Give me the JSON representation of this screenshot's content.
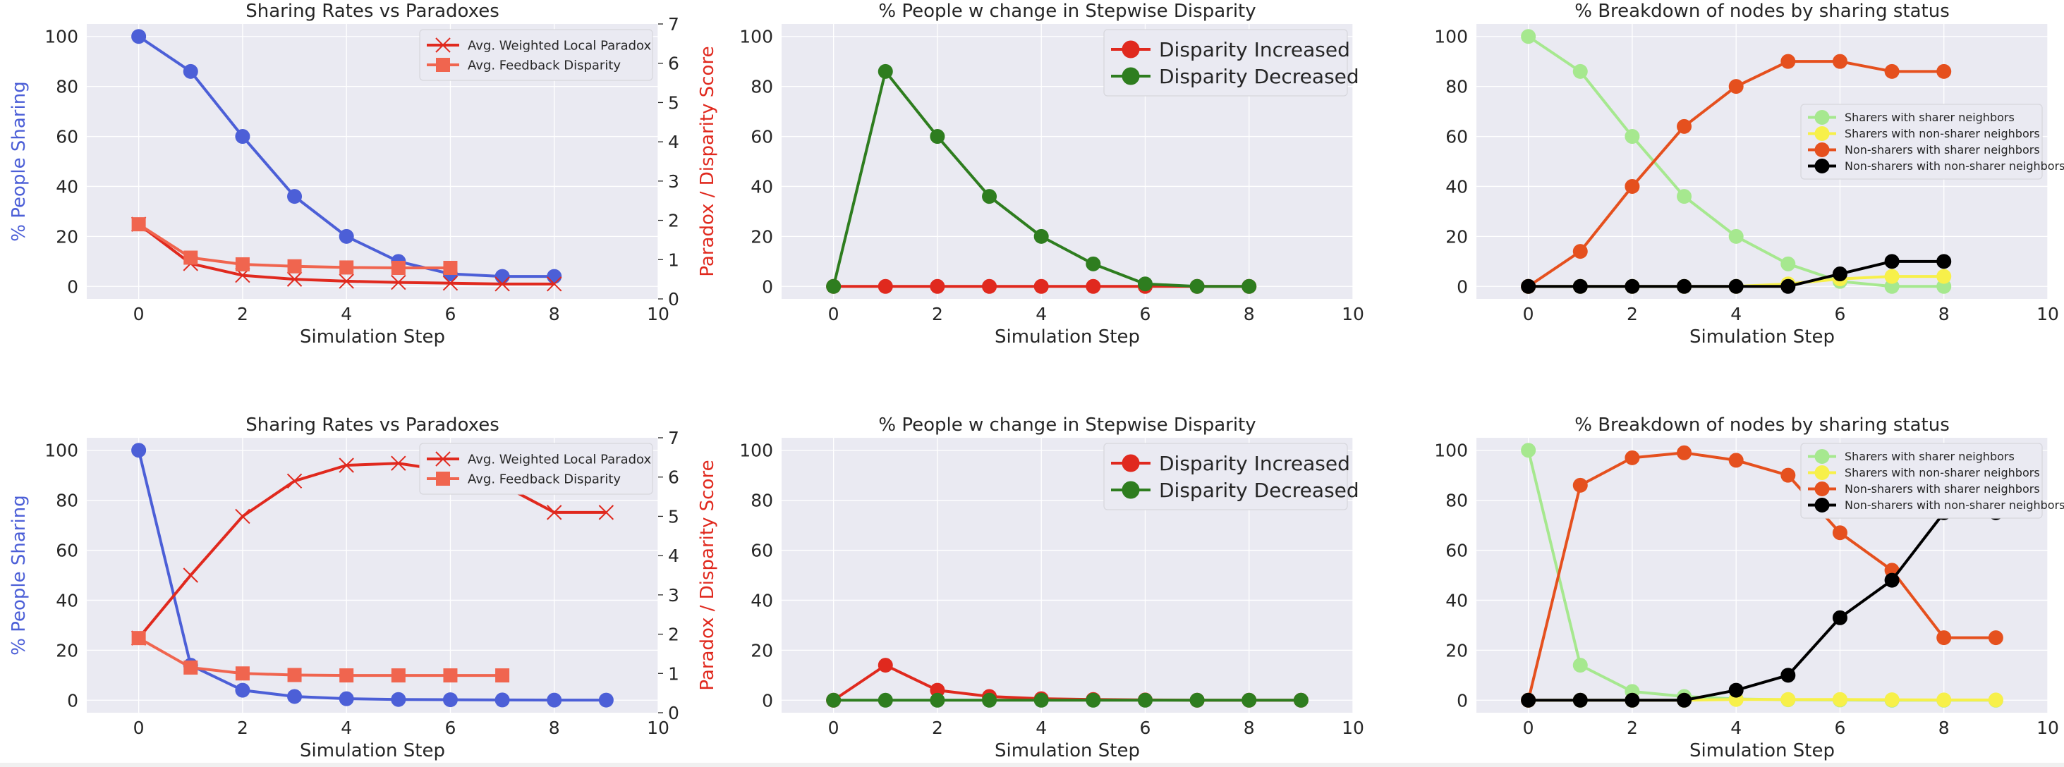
{
  "chart_data": [
    {
      "type": "line",
      "title": "Sharing Rates vs Paradoxes",
      "xlabel": "Simulation Step",
      "ylabel": "% People Sharing",
      "y2label": "Paradox / Disparity Score",
      "xlim": [
        -1,
        10
      ],
      "ylim": [
        -5,
        105
      ],
      "y2lim": [
        0,
        7
      ],
      "xticks": [
        0,
        2,
        4,
        6,
        8,
        10
      ],
      "yticks": [
        0,
        20,
        40,
        60,
        80,
        100
      ],
      "y2ticks": [
        0,
        1,
        2,
        3,
        4,
        5,
        6,
        7
      ],
      "legend_position": "upper right",
      "legend_size": "small",
      "series": [
        {
          "name": "% People Sharing",
          "axis": "left",
          "color": "#4c5fd7",
          "marker": "o",
          "x": [
            0,
            1,
            2,
            3,
            4,
            5,
            6,
            7,
            8
          ],
          "values": [
            100,
            86,
            60,
            36,
            20,
            10,
            5,
            4,
            4
          ],
          "legend": false
        },
        {
          "name": "Avg. Weighted Local Paradox",
          "axis": "right",
          "color": "#e0291e",
          "marker": "x",
          "x": [
            0,
            1,
            2,
            3,
            4,
            5,
            6,
            7,
            8
          ],
          "values": [
            1.9,
            0.9,
            0.6,
            0.5,
            0.45,
            0.42,
            0.4,
            0.38,
            0.38
          ],
          "legend": true
        },
        {
          "name": "Avg. Feedback Disparity",
          "axis": "right",
          "color": "#f0654f",
          "marker": "s",
          "x": [
            0,
            1,
            2,
            3,
            4,
            5,
            6
          ],
          "values": [
            1.9,
            1.05,
            0.88,
            0.83,
            0.8,
            0.79,
            0.79
          ],
          "legend": true
        }
      ]
    },
    {
      "type": "line",
      "title": "% People w change in Stepwise Disparity",
      "xlabel": "Simulation Step",
      "ylabel": "",
      "xlim": [
        -1,
        10
      ],
      "ylim": [
        -5,
        105
      ],
      "xticks": [
        0,
        2,
        4,
        6,
        8,
        10
      ],
      "yticks": [
        0,
        20,
        40,
        60,
        80,
        100
      ],
      "legend_position": "upper right",
      "legend_size": "large",
      "series": [
        {
          "name": "Disparity Increased",
          "axis": "left",
          "color": "#e0291e",
          "marker": "o",
          "x": [
            0,
            1,
            2,
            3,
            4,
            5,
            6,
            7,
            8
          ],
          "values": [
            0,
            0,
            0,
            0,
            0,
            0,
            0,
            0,
            0
          ],
          "legend": true
        },
        {
          "name": "Disparity Decreased",
          "axis": "left",
          "color": "#2e7d1f",
          "marker": "o",
          "x": [
            0,
            1,
            2,
            3,
            4,
            5,
            6,
            7,
            8
          ],
          "values": [
            0,
            86,
            60,
            36,
            20,
            9,
            1,
            0,
            0
          ],
          "legend": true
        }
      ]
    },
    {
      "type": "line",
      "title": "% Breakdown of nodes by sharing status",
      "xlabel": "Simulation Step",
      "ylabel": "",
      "xlim": [
        -1,
        10
      ],
      "ylim": [
        -5,
        105
      ],
      "xticks": [
        0,
        2,
        4,
        6,
        8,
        10
      ],
      "yticks": [
        0,
        20,
        40,
        60,
        80,
        100
      ],
      "legend_position": "center right",
      "legend_size": "tiny",
      "series": [
        {
          "name": "Sharers with sharer neighbors",
          "axis": "left",
          "color": "#a6e88f",
          "marker": "o",
          "x": [
            0,
            1,
            2,
            3,
            4,
            5,
            6,
            7,
            8
          ],
          "values": [
            100,
            86,
            60,
            36,
            20,
            9,
            2,
            0,
            0
          ],
          "legend": true
        },
        {
          "name": "Sharers with non-sharer neighbors",
          "axis": "left",
          "color": "#f7f04a",
          "marker": "o",
          "x": [
            0,
            1,
            2,
            3,
            4,
            5,
            6,
            7,
            8
          ],
          "values": [
            0,
            0,
            0,
            0,
            0,
            1,
            3,
            4,
            4
          ],
          "legend": true
        },
        {
          "name": "Non-sharers with sharer neighbors",
          "axis": "left",
          "color": "#e5501e",
          "marker": "o",
          "x": [
            0,
            1,
            2,
            3,
            4,
            5,
            6,
            7,
            8
          ],
          "values": [
            0,
            14,
            40,
            64,
            80,
            90,
            90,
            86,
            86
          ],
          "legend": true
        },
        {
          "name": "Non-sharers with non-sharer neighbors",
          "axis": "left",
          "color": "#000000",
          "marker": "o",
          "x": [
            0,
            1,
            2,
            3,
            4,
            5,
            6,
            7,
            8
          ],
          "values": [
            0,
            0,
            0,
            0,
            0,
            0,
            5,
            10,
            10
          ],
          "legend": true
        }
      ]
    },
    {
      "type": "line",
      "title": "Sharing Rates vs Paradoxes",
      "xlabel": "Simulation Step",
      "ylabel": "% People Sharing",
      "y2label": "Paradox / Disparity Score",
      "xlim": [
        -1,
        10
      ],
      "ylim": [
        -5,
        105
      ],
      "y2lim": [
        0,
        7
      ],
      "xticks": [
        0,
        2,
        4,
        6,
        8,
        10
      ],
      "yticks": [
        0,
        20,
        40,
        60,
        80,
        100
      ],
      "y2ticks": [
        0,
        1,
        2,
        3,
        4,
        5,
        6,
        7
      ],
      "legend_position": "upper right",
      "legend_size": "small",
      "series": [
        {
          "name": "% People Sharing",
          "axis": "left",
          "color": "#4c5fd7",
          "marker": "o",
          "x": [
            0,
            1,
            2,
            3,
            4,
            5,
            6,
            7,
            8,
            9
          ],
          "values": [
            100,
            14,
            4,
            1.5,
            0.6,
            0.3,
            0.2,
            0.1,
            0.05,
            0.05
          ],
          "legend": false
        },
        {
          "name": "Avg. Weighted Local Paradox",
          "axis": "right",
          "color": "#e0291e",
          "marker": "x",
          "x": [
            0,
            1,
            2,
            3,
            4,
            5,
            6,
            7,
            8,
            9
          ],
          "values": [
            1.9,
            3.5,
            5.0,
            5.9,
            6.3,
            6.35,
            6.15,
            5.8,
            5.1,
            5.1
          ],
          "legend": true
        },
        {
          "name": "Avg. Feedback Disparity",
          "axis": "right",
          "color": "#f0654f",
          "marker": "s",
          "x": [
            0,
            1,
            2,
            3,
            4,
            5,
            6,
            7
          ],
          "values": [
            1.9,
            1.15,
            1.0,
            0.96,
            0.95,
            0.95,
            0.95,
            0.95
          ],
          "legend": true
        }
      ]
    },
    {
      "type": "line",
      "title": "% People w change in Stepwise Disparity",
      "xlabel": "Simulation Step",
      "ylabel": "",
      "xlim": [
        -1,
        10
      ],
      "ylim": [
        -5,
        105
      ],
      "xticks": [
        0,
        2,
        4,
        6,
        8,
        10
      ],
      "yticks": [
        0,
        20,
        40,
        60,
        80,
        100
      ],
      "legend_position": "upper right",
      "legend_size": "large",
      "series": [
        {
          "name": "Disparity Increased",
          "axis": "left",
          "color": "#e0291e",
          "marker": "o",
          "x": [
            0,
            1,
            2,
            3,
            4,
            5,
            6,
            7,
            8,
            9
          ],
          "values": [
            0,
            14,
            4,
            1.5,
            0.6,
            0.3,
            0.1,
            0,
            0,
            0
          ],
          "legend": true
        },
        {
          "name": "Disparity Decreased",
          "axis": "left",
          "color": "#2e7d1f",
          "marker": "o",
          "x": [
            0,
            1,
            2,
            3,
            4,
            5,
            6,
            7,
            8,
            9
          ],
          "values": [
            0,
            0,
            0,
            0,
            0,
            0,
            0,
            0,
            0,
            0
          ],
          "legend": true
        }
      ]
    },
    {
      "type": "line",
      "title": "% Breakdown of nodes by sharing status",
      "xlabel": "Simulation Step",
      "ylabel": "",
      "xlim": [
        -1,
        10
      ],
      "ylim": [
        -5,
        105
      ],
      "xticks": [
        0,
        2,
        4,
        6,
        8,
        10
      ],
      "yticks": [
        0,
        20,
        40,
        60,
        80,
        100
      ],
      "legend_position": "upper right",
      "legend_size": "tiny",
      "series": [
        {
          "name": "Sharers with sharer neighbors",
          "axis": "left",
          "color": "#a6e88f",
          "marker": "o",
          "x": [
            0,
            1,
            2,
            3,
            4,
            5,
            6,
            7,
            8,
            9
          ],
          "values": [
            100,
            14,
            3.5,
            1.5,
            0.5,
            0.2,
            0.1,
            0,
            0,
            0
          ],
          "legend": true
        },
        {
          "name": "Sharers with non-sharer neighbors",
          "axis": "left",
          "color": "#f7f04a",
          "marker": "o",
          "x": [
            0,
            1,
            2,
            3,
            4,
            5,
            6,
            7,
            8,
            9
          ],
          "values": [
            0,
            0,
            0,
            0,
            0.3,
            0.3,
            0.3,
            0.2,
            0.1,
            0.1
          ],
          "legend": true
        },
        {
          "name": "Non-sharers with sharer neighbors",
          "axis": "left",
          "color": "#e5501e",
          "marker": "o",
          "x": [
            0,
            1,
            2,
            3,
            4,
            5,
            6,
            7,
            8,
            9
          ],
          "values": [
            0,
            86,
            97,
            99,
            96,
            90,
            67,
            52,
            25,
            25
          ],
          "legend": true
        },
        {
          "name": "Non-sharers with non-sharer neighbors",
          "axis": "left",
          "color": "#000000",
          "marker": "o",
          "x": [
            0,
            1,
            2,
            3,
            4,
            5,
            6,
            7,
            8,
            9
          ],
          "values": [
            0,
            0,
            0,
            0,
            4,
            10,
            33,
            48,
            75,
            75
          ],
          "legend": true
        }
      ]
    }
  ]
}
